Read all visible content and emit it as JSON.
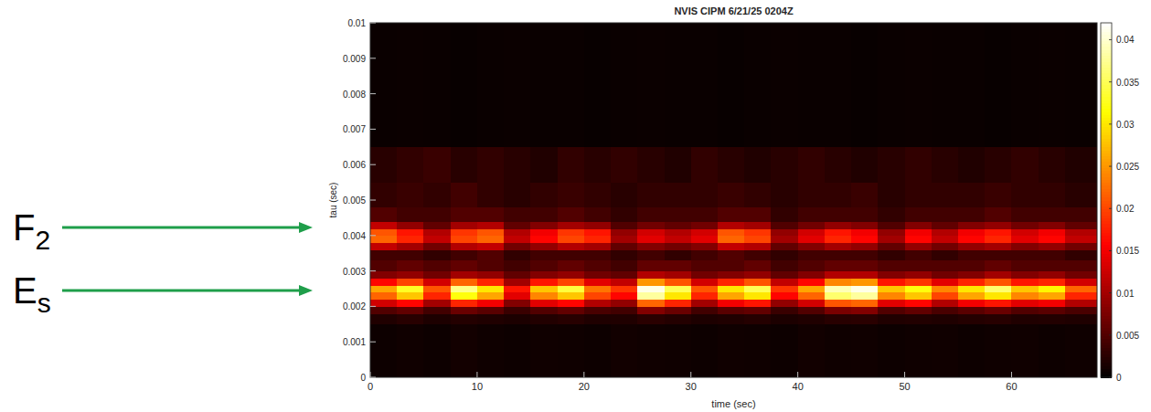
{
  "chart_data": {
    "type": "heatmap",
    "title": "NVIS CIPM 6/21/25 0204Z",
    "x_label": "time (sec)",
    "y_label": "tau (sec)",
    "xlim": [
      0,
      68
    ],
    "ylim": [
      0,
      0.01
    ],
    "xticks": [
      0,
      10,
      20,
      30,
      40,
      50,
      60
    ],
    "yticks": [
      0,
      0.001,
      0.002,
      0.003,
      0.004,
      0.005,
      0.006,
      0.007,
      0.008,
      0.009,
      0.01
    ],
    "clim": [
      0,
      0.042
    ],
    "cticks": [
      0,
      0.005,
      0.01,
      0.015,
      0.02,
      0.025,
      0.03,
      0.035,
      0.04
    ],
    "x_bins": [
      0,
      2.5,
      5,
      7.5,
      10,
      12.5,
      15,
      17.5,
      20,
      22.5,
      25,
      27.5,
      30,
      32.5,
      35,
      37.5,
      40,
      42.5,
      45,
      47.5,
      50,
      52.5,
      55,
      57.5,
      60,
      62.5,
      65,
      68
    ],
    "y_bins": [
      0,
      0.0015,
      0.0018,
      0.002,
      0.0022,
      0.0024,
      0.0026,
      0.0028,
      0.003,
      0.0033,
      0.0036,
      0.0038,
      0.004,
      0.0042,
      0.0044,
      0.0048,
      0.0055,
      0.0065,
      0.01
    ],
    "cells": [
      [
        0.0008,
        0.001,
        0.0008,
        0.0012,
        0.0009,
        0.0008,
        0.001,
        0.0009,
        0.0008,
        0.0011,
        0.001,
        0.0009,
        0.0008,
        0.001,
        0.0009,
        0.0008,
        0.0011,
        0.0009,
        0.001,
        0.0008,
        0.0009,
        0.001,
        0.0008,
        0.0009,
        0.001,
        0.0008,
        0.0009
      ],
      [
        0.002,
        0.0025,
        0.0018,
        0.0022,
        0.002,
        0.0017,
        0.0021,
        0.0024,
        0.0019,
        0.002,
        0.0026,
        0.0022,
        0.0018,
        0.002,
        0.0023,
        0.0017,
        0.002,
        0.0025,
        0.0026,
        0.002,
        0.0021,
        0.0019,
        0.0022,
        0.0024,
        0.002,
        0.0021,
        0.0019
      ],
      [
        0.005,
        0.006,
        0.004,
        0.0065,
        0.0055,
        0.0035,
        0.005,
        0.006,
        0.0045,
        0.004,
        0.008,
        0.0065,
        0.004,
        0.0055,
        0.006,
        0.0035,
        0.005,
        0.0075,
        0.008,
        0.005,
        0.006,
        0.0045,
        0.0055,
        0.0065,
        0.005,
        0.0055,
        0.0045
      ],
      [
        0.013,
        0.016,
        0.01,
        0.018,
        0.015,
        0.008,
        0.014,
        0.016,
        0.011,
        0.009,
        0.022,
        0.018,
        0.01,
        0.015,
        0.017,
        0.009,
        0.013,
        0.021,
        0.022,
        0.014,
        0.016,
        0.011,
        0.015,
        0.017,
        0.014,
        0.015,
        0.011
      ],
      [
        0.022,
        0.028,
        0.018,
        0.032,
        0.026,
        0.014,
        0.024,
        0.028,
        0.02,
        0.016,
        0.038,
        0.03,
        0.018,
        0.026,
        0.03,
        0.016,
        0.022,
        0.036,
        0.038,
        0.024,
        0.028,
        0.02,
        0.026,
        0.03,
        0.024,
        0.026,
        0.018
      ],
      [
        0.026,
        0.033,
        0.021,
        0.037,
        0.03,
        0.017,
        0.028,
        0.034,
        0.023,
        0.019,
        0.041,
        0.035,
        0.021,
        0.03,
        0.035,
        0.019,
        0.026,
        0.039,
        0.041,
        0.028,
        0.032,
        0.024,
        0.03,
        0.036,
        0.028,
        0.031,
        0.022
      ],
      [
        0.016,
        0.02,
        0.013,
        0.022,
        0.018,
        0.01,
        0.017,
        0.02,
        0.014,
        0.012,
        0.025,
        0.021,
        0.013,
        0.018,
        0.021,
        0.012,
        0.016,
        0.024,
        0.025,
        0.017,
        0.019,
        0.014,
        0.018,
        0.021,
        0.017,
        0.018,
        0.013
      ],
      [
        0.008,
        0.009,
        0.007,
        0.01,
        0.009,
        0.006,
        0.008,
        0.009,
        0.007,
        0.006,
        0.011,
        0.01,
        0.007,
        0.008,
        0.009,
        0.006,
        0.008,
        0.011,
        0.011,
        0.008,
        0.009,
        0.007,
        0.008,
        0.01,
        0.008,
        0.009,
        0.007
      ],
      [
        0.005,
        0.006,
        0.005,
        0.006,
        0.005,
        0.004,
        0.005,
        0.006,
        0.005,
        0.004,
        0.006,
        0.006,
        0.005,
        0.005,
        0.006,
        0.004,
        0.005,
        0.006,
        0.006,
        0.005,
        0.005,
        0.005,
        0.005,
        0.006,
        0.005,
        0.005,
        0.005
      ],
      [
        0.004,
        0.004,
        0.003,
        0.004,
        0.005,
        0.003,
        0.004,
        0.004,
        0.004,
        0.003,
        0.004,
        0.003,
        0.004,
        0.005,
        0.004,
        0.003,
        0.004,
        0.004,
        0.004,
        0.003,
        0.004,
        0.003,
        0.004,
        0.004,
        0.004,
        0.004,
        0.003
      ],
      [
        0.012,
        0.01,
        0.007,
        0.011,
        0.012,
        0.007,
        0.009,
        0.011,
        0.01,
        0.006,
        0.008,
        0.007,
        0.008,
        0.012,
        0.011,
        0.006,
        0.008,
        0.01,
        0.009,
        0.006,
        0.009,
        0.007,
        0.009,
        0.01,
        0.008,
        0.009,
        0.007
      ],
      [
        0.022,
        0.018,
        0.012,
        0.02,
        0.022,
        0.012,
        0.016,
        0.02,
        0.018,
        0.01,
        0.014,
        0.012,
        0.014,
        0.022,
        0.02,
        0.01,
        0.014,
        0.018,
        0.016,
        0.01,
        0.016,
        0.012,
        0.016,
        0.018,
        0.014,
        0.016,
        0.012
      ],
      [
        0.021,
        0.017,
        0.011,
        0.019,
        0.021,
        0.011,
        0.015,
        0.019,
        0.017,
        0.009,
        0.013,
        0.011,
        0.013,
        0.021,
        0.019,
        0.009,
        0.013,
        0.017,
        0.015,
        0.009,
        0.015,
        0.011,
        0.015,
        0.017,
        0.013,
        0.015,
        0.011
      ],
      [
        0.012,
        0.009,
        0.006,
        0.01,
        0.011,
        0.006,
        0.008,
        0.01,
        0.009,
        0.005,
        0.007,
        0.006,
        0.007,
        0.011,
        0.01,
        0.005,
        0.007,
        0.009,
        0.008,
        0.005,
        0.008,
        0.006,
        0.008,
        0.009,
        0.007,
        0.008,
        0.006
      ],
      [
        0.005,
        0.004,
        0.004,
        0.005,
        0.005,
        0.004,
        0.004,
        0.005,
        0.004,
        0.003,
        0.004,
        0.004,
        0.004,
        0.005,
        0.005,
        0.003,
        0.004,
        0.004,
        0.004,
        0.003,
        0.004,
        0.004,
        0.004,
        0.005,
        0.004,
        0.004,
        0.004
      ],
      [
        0.003,
        0.0035,
        0.003,
        0.004,
        0.003,
        0.0025,
        0.003,
        0.0035,
        0.003,
        0.0025,
        0.003,
        0.003,
        0.003,
        0.0035,
        0.003,
        0.0025,
        0.003,
        0.003,
        0.0035,
        0.0025,
        0.003,
        0.003,
        0.003,
        0.0035,
        0.003,
        0.003,
        0.0025
      ],
      [
        0.0025,
        0.003,
        0.0035,
        0.0025,
        0.003,
        0.0025,
        0.002,
        0.003,
        0.0025,
        0.003,
        0.0025,
        0.002,
        0.003,
        0.0025,
        0.002,
        0.0025,
        0.003,
        0.0025,
        0.002,
        0.0025,
        0.003,
        0.0025,
        0.002,
        0.0025,
        0.003,
        0.0025,
        0.002
      ],
      [
        0.0006,
        0.0007,
        0.0006,
        0.0005,
        0.0006,
        0.0007,
        0.0006,
        0.0006,
        0.0005,
        0.0006,
        0.0007,
        0.0006,
        0.0006,
        0.0005,
        0.0006,
        0.0007,
        0.0006,
        0.0006,
        0.0005,
        0.0006,
        0.0007,
        0.0006,
        0.0006,
        0.0005,
        0.0006,
        0.0007,
        0.0006
      ]
    ],
    "annotations": [
      {
        "text": "F",
        "sub": "2",
        "y": 0.00423
      },
      {
        "text": "E",
        "sub": "s",
        "y": 0.00245
      }
    ]
  }
}
